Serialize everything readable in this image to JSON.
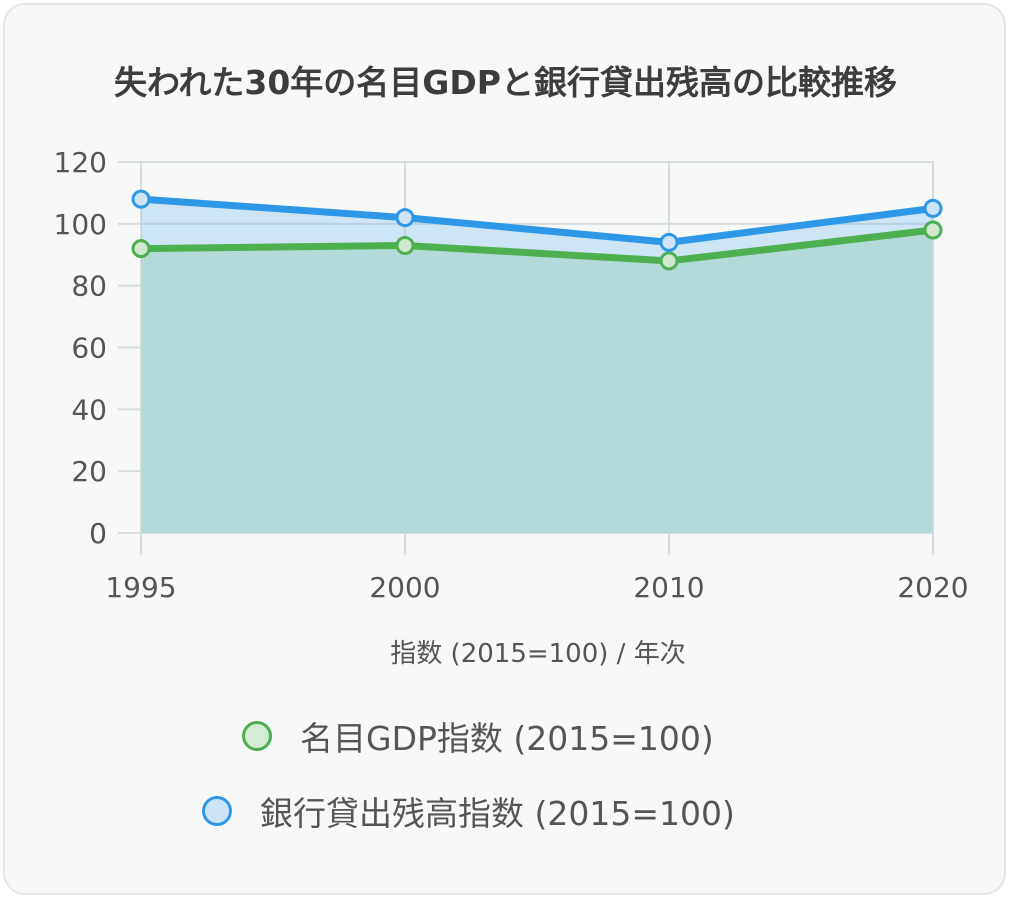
{
  "title": "失われた30年の名目GDPと銀行貸出残高の比較推移",
  "colors": {
    "gdp_line": "#4caf50",
    "gdp_fill": "rgba(76,175,80,0.22)",
    "loan_line": "#2f98e6",
    "loan_fill": "rgba(100,180,240,0.28)",
    "area_fill": "#b2dad8",
    "grid": "#d8dcdc",
    "card_bg": "#f7f9f9"
  },
  "chart_data": {
    "type": "line",
    "title": "失われた30年の名目GDPと銀行貸出残高の比較推移",
    "x": [
      "1995",
      "2000",
      "2010",
      "2020"
    ],
    "xlabel": "指数 (2015=100) / 年次",
    "ylabel": "",
    "ylim": [
      0,
      120
    ],
    "yticks": [
      0,
      20,
      40,
      60,
      80,
      100,
      120
    ],
    "grid": true,
    "legend_position": "bottom",
    "series": [
      {
        "name": "名目GDP指数 (2015=100)",
        "values": [
          92,
          93,
          88,
          98
        ]
      },
      {
        "name": "銀行貸出残高指数 (2015=100)",
        "values": [
          108,
          102,
          94,
          105
        ]
      }
    ]
  }
}
